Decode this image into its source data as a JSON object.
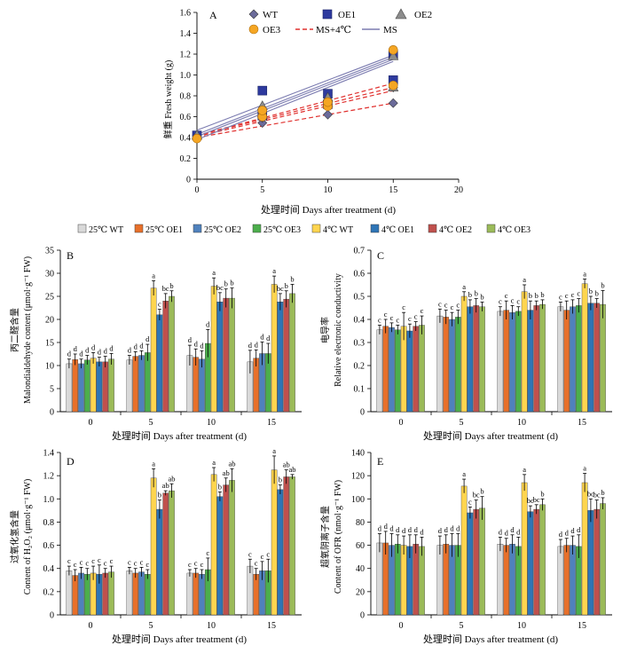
{
  "panel_a": {
    "letter": "A",
    "ylabel": "鲜重 Fresh weight (g)",
    "xlabel": "处理时间 Days after treatment (d)",
    "xticks": [
      "0",
      "5",
      "10",
      "15",
      "20"
    ],
    "yticks": [
      "0",
      "0.2",
      "0.4",
      "0.6",
      "0.8",
      "1.0",
      "1.2",
      "1.4",
      "1.6"
    ],
    "legend": {
      "wt": "WT",
      "oe1": "OE1",
      "oe2": "OE2",
      "oe3": "OE3",
      "ms4": "MS+4℃",
      "ms": "MS"
    }
  },
  "bar_legend": [
    "25℃ WT",
    "25℃ OE1",
    "25℃ OE2",
    "25℃ OE3",
    "4℃ WT",
    "4℃ OE1",
    "4℃ OE2",
    "4℃ OE3"
  ],
  "colors": [
    "#d9d9d9",
    "#e8702a",
    "#4f81bd",
    "#4cae4c",
    "#ffd54f",
    "#2e75b6",
    "#c0504d",
    "#9bbb59"
  ],
  "panel_b": {
    "letter": "B",
    "ylabel1": "丙二醛含量",
    "ylabel2": "Malondialdehyde content (μmol·g⁻¹ FW)",
    "xlabel": "处理时间 Days after treatment (d)",
    "yticks": [
      "0",
      "5",
      "10",
      "15",
      "20",
      "25",
      "30",
      "35"
    ],
    "groups": [
      "0",
      "5",
      "10",
      "15"
    ]
  },
  "panel_c": {
    "letter": "C",
    "ylabel1": "电导率",
    "ylabel2": "Relative electronic conductivity",
    "xlabel": "处理时间 Days after treatment (d)",
    "yticks": [
      "0",
      "0.1",
      "0.2",
      "0.3",
      "0.4",
      "0.5",
      "0.6",
      "0.7"
    ],
    "groups": [
      "0",
      "5",
      "10",
      "15"
    ]
  },
  "panel_d": {
    "letter": "D",
    "ylabel1": "过氧化氢含量",
    "ylabel2": "Content of H₂O₂ (μmol·g⁻¹ FW)",
    "xlabel": "处理时间 Days after treatment (d)",
    "yticks": [
      "0",
      "0.2",
      "0.4",
      "0.6",
      "0.8",
      "1.0",
      "1.2",
      "1.4"
    ],
    "groups": [
      "0",
      "5",
      "10",
      "15"
    ]
  },
  "panel_e": {
    "letter": "E",
    "ylabel1": "超氧阴离子含量",
    "ylabel2": "Content of OFR (nmol·g⁻¹ FW)",
    "xlabel": "处理时间 Days after treatment (d)",
    "yticks": [
      "0",
      "20",
      "40",
      "60",
      "80",
      "100",
      "120",
      "140"
    ],
    "groups": [
      "0",
      "5",
      "10",
      "15"
    ]
  },
  "chart_data": [
    {
      "type": "scatter",
      "panel": "A",
      "xlim": [
        0,
        20
      ],
      "ylim": [
        0,
        1.6
      ],
      "xlabel": "处理时间 Days after treatment (d)",
      "ylabel": "鲜重 Fresh weight (g)",
      "legend_position": "top",
      "series": [
        {
          "name": "WT",
          "marker": "diamond",
          "x": [
            0,
            5,
            5,
            10,
            10,
            15,
            15
          ],
          "y": [
            0.42,
            0.54,
            0.59,
            0.62,
            0.7,
            0.73,
            0.88
          ]
        },
        {
          "name": "OE1",
          "marker": "square",
          "x": [
            0,
            5,
            5,
            10,
            10,
            15,
            15
          ],
          "y": [
            0.42,
            0.85,
            0.61,
            0.82,
            0.72,
            0.95,
            1.2
          ]
        },
        {
          "name": "OE2",
          "marker": "triangle",
          "x": [
            0,
            5,
            5,
            10,
            10,
            15,
            15
          ],
          "y": [
            0.42,
            0.7,
            0.63,
            0.73,
            0.78,
            0.88,
            1.18
          ]
        },
        {
          "name": "OE3",
          "marker": "circle",
          "x": [
            0,
            5,
            5,
            10,
            10,
            15,
            15
          ],
          "y": [
            0.39,
            0.6,
            0.66,
            0.7,
            0.74,
            0.9,
            1.24
          ]
        }
      ],
      "trend_lines": [
        {
          "name": "MS+4℃",
          "style": "dashed",
          "color": "#e0302e",
          "segments": [
            [
              [
                0,
                0.4
              ],
              [
                15,
                0.73
              ]
            ],
            [
              [
                0,
                0.41
              ],
              [
                15,
                0.85
              ]
            ],
            [
              [
                0,
                0.42
              ],
              [
                15,
                0.88
              ]
            ],
            [
              [
                0,
                0.42
              ],
              [
                15,
                0.92
              ]
            ]
          ]
        },
        {
          "name": "MS",
          "style": "solid",
          "color": "#7b7bb0",
          "segments": [
            [
              [
                0,
                0.38
              ],
              [
                15,
                1.13
              ]
            ],
            [
              [
                0,
                0.41
              ],
              [
                15,
                1.15
              ]
            ],
            [
              [
                0,
                0.43
              ],
              [
                15,
                1.17
              ]
            ],
            [
              [
                0,
                0.47
              ],
              [
                15,
                1.19
              ]
            ]
          ]
        }
      ]
    },
    {
      "type": "bar",
      "panel": "B",
      "categories": [
        "0",
        "5",
        "10",
        "15"
      ],
      "ylim": [
        0,
        35
      ],
      "xlabel": "处理时间 Days after treatment (d)",
      "ylabel": "Malondialdehyde content (μmol·g⁻¹ FW)",
      "series": [
        {
          "name": "25℃ WT",
          "values": [
            10.4,
            11.2,
            12.2,
            10.8
          ],
          "errors": [
            1.0,
            1.0,
            2.2,
            2.5
          ],
          "letters": [
            "d",
            "d",
            "d",
            "d"
          ]
        },
        {
          "name": "25℃ OE1",
          "values": [
            11.3,
            12.0,
            11.8,
            11.6
          ],
          "errors": [
            1.2,
            1.0,
            1.8,
            1.8
          ],
          "letters": [
            "d",
            "d",
            "d",
            "d"
          ]
        },
        {
          "name": "25℃ OE2",
          "values": [
            10.4,
            12.2,
            11.4,
            12.6
          ],
          "errors": [
            1.0,
            1.0,
            1.8,
            2.5
          ],
          "letters": [
            "d",
            "d",
            "d",
            "d"
          ]
        },
        {
          "name": "25℃ OE3",
          "values": [
            11.2,
            12.8,
            14.8,
            12.6
          ],
          "errors": [
            1.0,
            1.8,
            3.0,
            2.2
          ],
          "letters": [
            "d",
            "d",
            "d",
            "d"
          ]
        },
        {
          "name": "4℃ WT",
          "values": [
            11.6,
            26.8,
            27.2,
            27.6
          ],
          "errors": [
            1.2,
            1.6,
            1.8,
            1.8
          ],
          "letters": [
            "d",
            "a",
            "a",
            "a"
          ]
        },
        {
          "name": "4℃ OE1",
          "values": [
            10.8,
            21.0,
            23.8,
            23.8
          ],
          "errors": [
            1.0,
            1.2,
            2.0,
            1.8
          ],
          "letters": [
            "d",
            "c",
            "bc",
            "bc"
          ]
        },
        {
          "name": "4℃ OE2",
          "values": [
            10.8,
            24.0,
            24.6,
            24.4
          ],
          "errors": [
            1.2,
            1.6,
            2.0,
            1.8
          ],
          "letters": [
            "d",
            "bc",
            "b",
            "b"
          ]
        },
        {
          "name": "4℃ OE3",
          "values": [
            11.4,
            25.0,
            24.6,
            25.6
          ],
          "errors": [
            1.2,
            1.2,
            2.2,
            2.0
          ],
          "letters": [
            "d",
            "b",
            "b",
            "b"
          ]
        }
      ]
    },
    {
      "type": "bar",
      "panel": "C",
      "categories": [
        "0",
        "5",
        "10",
        "15"
      ],
      "ylim": [
        0,
        0.7
      ],
      "xlabel": "处理时间 Days after treatment (d)",
      "ylabel": "Relative electronic conductivity",
      "series": [
        {
          "name": "25℃ WT",
          "values": [
            0.355,
            0.415,
            0.435,
            0.455
          ],
          "errors": [
            0.02,
            0.03,
            0.02,
            0.02
          ],
          "letters": [
            "c",
            "c",
            "c",
            "c"
          ]
        },
        {
          "name": "25℃ OE1",
          "values": [
            0.37,
            0.41,
            0.44,
            0.44
          ],
          "errors": [
            0.03,
            0.03,
            0.04,
            0.04
          ],
          "letters": [
            "c",
            "c",
            "c",
            "c"
          ]
        },
        {
          "name": "25℃ OE2",
          "values": [
            0.365,
            0.4,
            0.43,
            0.455
          ],
          "errors": [
            0.02,
            0.03,
            0.03,
            0.03
          ],
          "letters": [
            "c",
            "c",
            "c",
            "c"
          ]
        },
        {
          "name": "25℃ OE3",
          "values": [
            0.355,
            0.41,
            0.435,
            0.46
          ],
          "errors": [
            0.02,
            0.03,
            0.02,
            0.03
          ],
          "letters": [
            "c",
            "c",
            "c",
            "c"
          ]
        },
        {
          "name": "4℃ WT",
          "values": [
            0.37,
            0.5,
            0.52,
            0.555
          ],
          "errors": [
            0.06,
            0.02,
            0.03,
            0.02
          ],
          "letters": [
            "c",
            "a",
            "a",
            "a"
          ]
        },
        {
          "name": "4℃ OE1",
          "values": [
            0.35,
            0.455,
            0.44,
            0.47
          ],
          "errors": [
            0.03,
            0.03,
            0.04,
            0.03
          ],
          "letters": [
            "c",
            "b",
            "b",
            "b"
          ]
        },
        {
          "name": "4℃ OE2",
          "values": [
            0.37,
            0.46,
            0.46,
            0.47
          ],
          "errors": [
            0.02,
            0.03,
            0.02,
            0.02
          ],
          "letters": [
            "c",
            "b",
            "b",
            "b"
          ]
        },
        {
          "name": "4℃ OE3",
          "values": [
            0.375,
            0.455,
            0.465,
            0.465
          ],
          "errors": [
            0.04,
            0.02,
            0.02,
            0.06
          ],
          "letters": [
            "c",
            "b",
            "b",
            "b"
          ]
        }
      ]
    },
    {
      "type": "bar",
      "panel": "D",
      "categories": [
        "0",
        "5",
        "10",
        "15"
      ],
      "ylim": [
        0,
        1.4
      ],
      "xlabel": "处理时间 Days after treatment (d)",
      "ylabel": "Content of H₂O₂ (μmol·g⁻¹ FW)",
      "series": [
        {
          "name": "25℃ WT",
          "values": [
            0.38,
            0.38,
            0.36,
            0.42
          ],
          "errors": [
            0.04,
            0.03,
            0.03,
            0.06
          ],
          "letters": [
            "c",
            "c",
            "c",
            "c"
          ]
        },
        {
          "name": "25℃ OE1",
          "values": [
            0.34,
            0.36,
            0.36,
            0.35
          ],
          "errors": [
            0.05,
            0.04,
            0.04,
            0.05
          ],
          "letters": [
            "c",
            "c",
            "c",
            "c"
          ]
        },
        {
          "name": "25℃ OE2",
          "values": [
            0.36,
            0.37,
            0.35,
            0.38
          ],
          "errors": [
            0.05,
            0.04,
            0.04,
            0.08
          ],
          "letters": [
            "c",
            "c",
            "c",
            "c"
          ]
        },
        {
          "name": "25℃ OE3",
          "values": [
            0.35,
            0.35,
            0.39,
            0.38
          ],
          "errors": [
            0.05,
            0.04,
            0.1,
            0.1
          ],
          "letters": [
            "c",
            "c",
            "c",
            "c"
          ]
        },
        {
          "name": "4℃ WT",
          "values": [
            0.36,
            1.18,
            1.21,
            1.25
          ],
          "errors": [
            0.06,
            0.08,
            0.06,
            0.12
          ],
          "letters": [
            "c",
            "a",
            "a",
            "a"
          ]
        },
        {
          "name": "4℃ OE1",
          "values": [
            0.35,
            0.91,
            1.02,
            1.08
          ],
          "errors": [
            0.08,
            0.08,
            0.04,
            0.04
          ],
          "letters": [
            "c",
            "b",
            "b",
            "b"
          ]
        },
        {
          "name": "4℃ OE2",
          "values": [
            0.36,
            1.05,
            1.12,
            1.19
          ],
          "errors": [
            0.04,
            0.02,
            0.06,
            0.06
          ],
          "letters": [
            "c",
            "ab",
            "ab",
            "ab"
          ]
        },
        {
          "name": "4℃ OE3",
          "values": [
            0.37,
            1.07,
            1.16,
            1.19
          ],
          "errors": [
            0.05,
            0.06,
            0.1,
            0.02
          ],
          "letters": [
            "c",
            "ab",
            "ab",
            "ab"
          ]
        }
      ]
    },
    {
      "type": "bar",
      "panel": "E",
      "categories": [
        "0",
        "5",
        "10",
        "15"
      ],
      "ylim": [
        0,
        140
      ],
      "xlabel": "处理时间 Days after treatment (d)",
      "ylabel": "Content of OFR (nmol·g⁻¹ FW)",
      "series": [
        {
          "name": "25℃ WT",
          "values": [
            62,
            60,
            61,
            59
          ],
          "errors": [
            8,
            8,
            6,
            6
          ],
          "letters": [
            "d",
            "d",
            "d",
            "d"
          ]
        },
        {
          "name": "25℃ OE1",
          "values": [
            62,
            61,
            60,
            60
          ],
          "errors": [
            10,
            8,
            6,
            6
          ],
          "letters": [
            "d",
            "d",
            "d",
            "d"
          ]
        },
        {
          "name": "25℃ OE2",
          "values": [
            60,
            60,
            61,
            60
          ],
          "errors": [
            10,
            10,
            8,
            8
          ],
          "letters": [
            "d",
            "d",
            "d",
            "d"
          ]
        },
        {
          "name": "25℃ OE3",
          "values": [
            61,
            60,
            59,
            59
          ],
          "errors": [
            8,
            10,
            8,
            10
          ],
          "letters": [
            "d",
            "d",
            "d",
            "d"
          ]
        },
        {
          "name": "4℃ WT",
          "values": [
            60,
            111,
            114,
            114
          ],
          "errors": [
            8,
            6,
            7,
            8
          ],
          "letters": [
            "d",
            "a",
            "a",
            "a"
          ]
        },
        {
          "name": "4℃ OE1",
          "values": [
            59,
            88,
            89,
            90
          ],
          "errors": [
            10,
            5,
            5,
            10
          ],
          "letters": [
            "d",
            "c",
            "bc",
            "bc"
          ]
        },
        {
          "name": "4℃ OE2",
          "values": [
            61,
            91,
            91,
            91
          ],
          "errors": [
            8,
            8,
            4,
            8
          ],
          "letters": [
            "d",
            "bc",
            "bc",
            "bc"
          ]
        },
        {
          "name": "4℃ OE3",
          "values": [
            59,
            92,
            95,
            96
          ],
          "errors": [
            8,
            10,
            5,
            5
          ],
          "letters": [
            "d",
            "b",
            "b",
            "b"
          ]
        }
      ]
    }
  ]
}
